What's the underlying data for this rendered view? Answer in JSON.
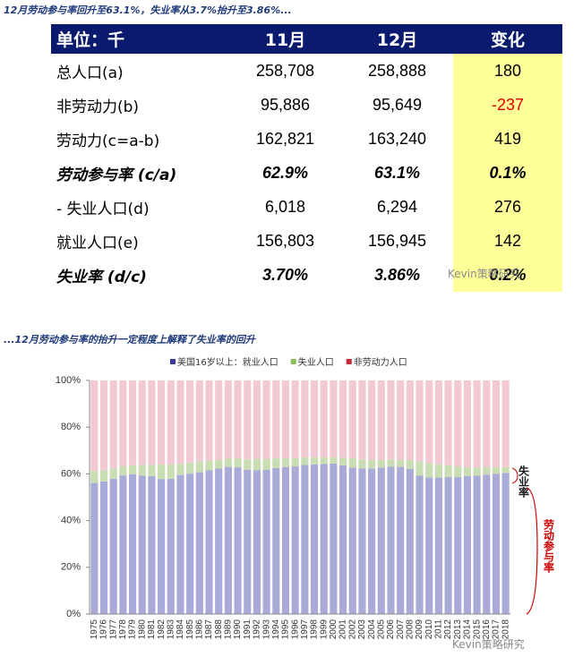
{
  "header": {
    "title": "12月劳动参与率回升至63.1%，失业率从3.7%抬升至3.86%..."
  },
  "table": {
    "columns": [
      "单位：千",
      "11月",
      "12月",
      "变化"
    ],
    "rows": [
      [
        "总人口(a)",
        "258,708",
        "258,888",
        "180"
      ],
      [
        "非劳动力(b)",
        "95,886",
        "95,649",
        "-237"
      ],
      [
        "劳动力(c=a-b)",
        "162,821",
        "163,240",
        "419"
      ],
      [
        "劳动参与率 (c/a)",
        "62.9%",
        "63.1%",
        "0.1%"
      ],
      [
        " - 失业人口(d)",
        "6,018",
        "6,294",
        "276"
      ],
      [
        "就业人口(e)",
        "156,803",
        "156,945",
        "142"
      ],
      [
        "失业率 (d/c)",
        "3.70%",
        "3.86%",
        "0.2%"
      ]
    ]
  },
  "watermark": "Kevin策略研究",
  "chart_data": {
    "type": "bar",
    "stacked": true,
    "title": "...12月劳动参与率的抬升一定程度上解释了失业率的回升",
    "categories": [
      "1975",
      "1976",
      "1977",
      "1978",
      "1979",
      "1980",
      "1981",
      "1982",
      "1983",
      "1984",
      "1985",
      "1986",
      "1987",
      "1988",
      "1989",
      "1990",
      "1991",
      "1992",
      "1993",
      "1994",
      "1995",
      "1996",
      "1997",
      "1998",
      "1999",
      "2000",
      "2001",
      "2002",
      "2003",
      "2004",
      "2005",
      "2006",
      "2007",
      "2008",
      "2009",
      "2010",
      "2011",
      "2012",
      "2013",
      "2014",
      "2015",
      "2016",
      "2017",
      "2018"
    ],
    "series": [
      {
        "name": "美国16岁以上：就业人口",
        "color": "#aaaad8",
        "legend_color": "#3a3a9a",
        "values": [
          56.1,
          56.8,
          57.9,
          59.3,
          59.9,
          59.2,
          59.0,
          57.8,
          57.9,
          59.5,
          60.1,
          60.7,
          61.5,
          62.3,
          63.0,
          62.8,
          61.7,
          61.5,
          61.7,
          62.5,
          62.9,
          63.2,
          63.8,
          64.1,
          64.3,
          64.4,
          63.7,
          62.7,
          62.3,
          62.3,
          62.7,
          63.1,
          63.0,
          62.2,
          59.3,
          58.5,
          58.4,
          58.6,
          58.6,
          59.0,
          59.3,
          59.7,
          60.1,
          60.4
        ]
      },
      {
        "name": "失业人口",
        "color": "#c8ddb2",
        "legend_color": "#8cbf5a",
        "values": [
          5.1,
          4.8,
          4.4,
          3.9,
          3.8,
          4.6,
          4.9,
          6.2,
          6.1,
          4.9,
          4.7,
          4.6,
          4.1,
          3.6,
          3.5,
          3.7,
          4.5,
          4.9,
          4.6,
          4.1,
          3.7,
          3.6,
          3.3,
          3.0,
          2.8,
          2.7,
          3.1,
          3.9,
          3.9,
          3.7,
          3.3,
          3.1,
          3.0,
          3.8,
          6.1,
          6.2,
          5.7,
          5.1,
          4.6,
          3.9,
          3.4,
          3.1,
          2.8,
          2.5
        ]
      },
      {
        "name": "非劳动力人口",
        "color": "#f2c9d2",
        "legend_color": "#c8283c",
        "values": [
          38.8,
          38.4,
          37.7,
          36.8,
          36.3,
          36.2,
          36.1,
          36.0,
          36.0,
          35.6,
          35.2,
          34.7,
          34.4,
          34.1,
          33.5,
          33.5,
          33.8,
          33.6,
          33.7,
          33.4,
          33.4,
          33.2,
          32.9,
          32.9,
          32.9,
          32.9,
          33.2,
          33.4,
          33.8,
          34.0,
          34.0,
          33.8,
          34.0,
          34.0,
          34.6,
          35.3,
          35.9,
          36.3,
          36.8,
          37.1,
          37.3,
          37.2,
          37.1,
          37.1
        ]
      }
    ],
    "ylim": [
      0,
      100
    ],
    "yticks": [
      {
        "value": 0,
        "label": "0%"
      },
      {
        "value": 20,
        "label": "20%"
      },
      {
        "value": 40,
        "label": "40%"
      },
      {
        "value": 60,
        "label": "60%"
      },
      {
        "value": 80,
        "label": "80%"
      },
      {
        "value": 100,
        "label": "100%"
      }
    ],
    "annotations": [
      "失业率",
      "劳动参与率"
    ]
  }
}
